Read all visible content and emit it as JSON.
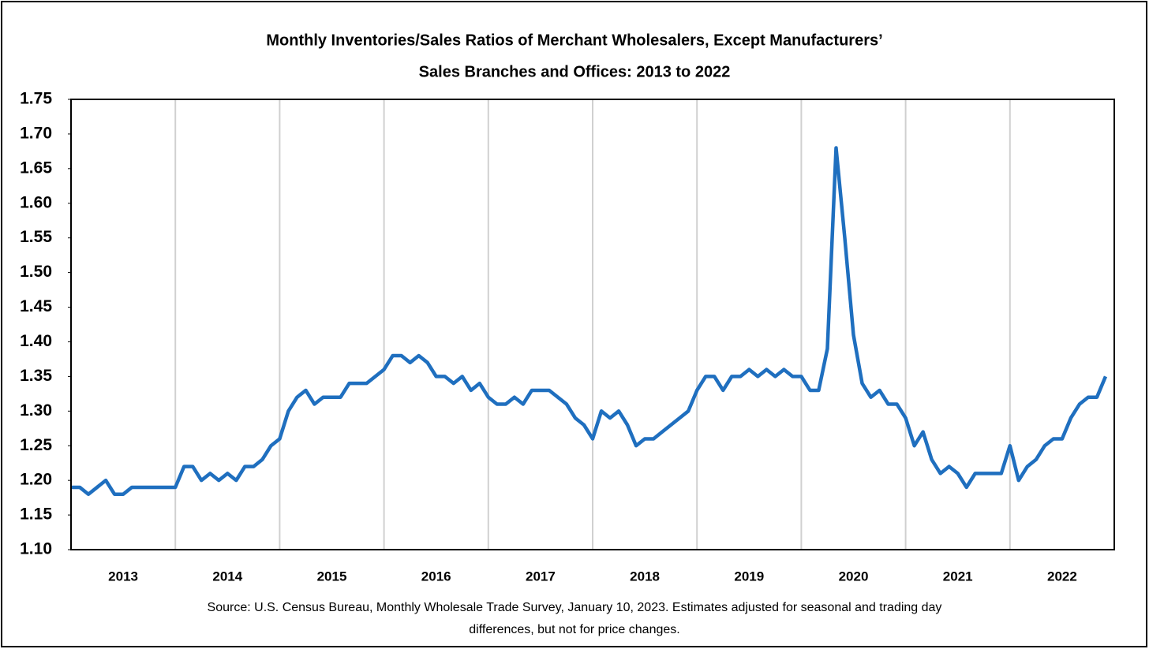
{
  "chart_data": {
    "type": "line",
    "title": [
      "Monthly Inventories/Sales Ratios of Merchant Wholesalers, Except Manufacturers’",
      "Sales Branches and Offices: 2013 to 2022"
    ],
    "source": [
      "Source: U.S. Census Bureau, Monthly Wholesale Trade Survey, January 10, 2023. Estimates adjusted for seasonal and trading day",
      "differences, but not for price changes."
    ],
    "categories": [
      "2013",
      null,
      null,
      null,
      null,
      null,
      null,
      null,
      null,
      null,
      null,
      null,
      "2014",
      null,
      null,
      null,
      null,
      null,
      null,
      null,
      null,
      null,
      null,
      null,
      "2015",
      null,
      null,
      null,
      null,
      null,
      null,
      null,
      null,
      null,
      null,
      null,
      "2016",
      null,
      null,
      null,
      null,
      null,
      null,
      null,
      null,
      null,
      null,
      null,
      "2017",
      null,
      null,
      null,
      null,
      null,
      null,
      null,
      null,
      null,
      null,
      null,
      "2018",
      null,
      null,
      null,
      null,
      null,
      null,
      null,
      null,
      null,
      null,
      null,
      "2019",
      null,
      null,
      null,
      null,
      null,
      null,
      null,
      null,
      null,
      null,
      null,
      "2020",
      null,
      null,
      null,
      null,
      null,
      null,
      null,
      null,
      null,
      null,
      null,
      "2021",
      null,
      null,
      null,
      null,
      null,
      null,
      null,
      null,
      null,
      null,
      null,
      "2022",
      null,
      null,
      null,
      null,
      null,
      null,
      null,
      null,
      null,
      null,
      null
    ],
    "series": [
      {
        "color": "#1f6fbf",
        "values": [
          1.19,
          1.19,
          1.18,
          1.19,
          1.2,
          1.18,
          1.18,
          1.19,
          1.19,
          1.19,
          1.19,
          1.19,
          1.19,
          1.22,
          1.22,
          1.2,
          1.21,
          1.2,
          1.21,
          1.2,
          1.22,
          1.22,
          1.23,
          1.25,
          1.26,
          1.3,
          1.32,
          1.33,
          1.31,
          1.32,
          1.32,
          1.32,
          1.34,
          1.34,
          1.34,
          1.35,
          1.36,
          1.38,
          1.38,
          1.37,
          1.38,
          1.37,
          1.35,
          1.35,
          1.34,
          1.35,
          1.33,
          1.34,
          1.32,
          1.31,
          1.31,
          1.32,
          1.31,
          1.33,
          1.33,
          1.33,
          1.32,
          1.31,
          1.29,
          1.28,
          1.26,
          1.3,
          1.29,
          1.3,
          1.28,
          1.25,
          1.26,
          1.26,
          1.27,
          1.28,
          1.29,
          1.3,
          1.33,
          1.35,
          1.35,
          1.33,
          1.35,
          1.35,
          1.36,
          1.35,
          1.36,
          1.35,
          1.36,
          1.35,
          1.35,
          1.33,
          1.33,
          1.39,
          1.68,
          1.55,
          1.41,
          1.34,
          1.32,
          1.33,
          1.31,
          1.31,
          1.29,
          1.25,
          1.27,
          1.23,
          1.21,
          1.22,
          1.21,
          1.19,
          1.21,
          1.21,
          1.21,
          1.21,
          1.25,
          1.2,
          1.22,
          1.23,
          1.25,
          1.26,
          1.26,
          1.29,
          1.31,
          1.32,
          1.32,
          1.35
        ]
      }
    ],
    "ylim": [
      1.1,
      1.75
    ],
    "yticks": [
      {
        "value": 1.1,
        "label": "1.10"
      },
      {
        "value": 1.15,
        "label": "1.15"
      },
      {
        "value": 1.2,
        "label": "1.20"
      },
      {
        "value": 1.25,
        "label": "1.25"
      },
      {
        "value": 1.3,
        "label": "1.30"
      },
      {
        "value": 1.35,
        "label": "1.35"
      },
      {
        "value": 1.4,
        "label": "1.40"
      },
      {
        "value": 1.45,
        "label": "1.45"
      },
      {
        "value": 1.5,
        "label": "1.50"
      },
      {
        "value": 1.55,
        "label": "1.55"
      },
      {
        "value": 1.6,
        "label": "1.60"
      },
      {
        "value": 1.65,
        "label": "1.65"
      },
      {
        "value": 1.7,
        "label": "1.70"
      },
      {
        "value": 1.75,
        "label": "1.75"
      }
    ],
    "x_grid": true
  }
}
